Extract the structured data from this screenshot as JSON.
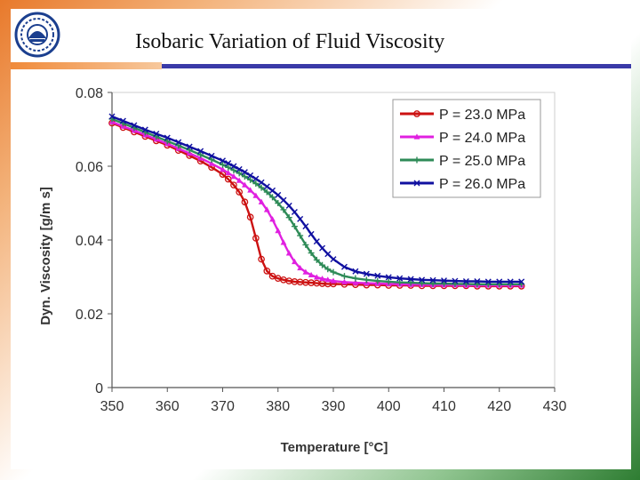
{
  "slide": {
    "title": "Isobaric Variation of Fluid Viscosity",
    "logo_icon": "institute-emblem-icon"
  },
  "colors": {
    "s1": "#cc1111",
    "s2": "#e020e0",
    "s3": "#2e8b57",
    "s4": "#1010a0"
  },
  "chart_data": {
    "type": "line",
    "title": "",
    "xlabel": "Temperature [°C]",
    "ylabel": "Dyn. Viscosity  [g/m s]",
    "xlim": [
      350,
      430
    ],
    "ylim": [
      0,
      0.08
    ],
    "xticks": [
      "350",
      "360",
      "370",
      "380",
      "390",
      "400",
      "410",
      "420",
      "430"
    ],
    "yticks": [
      "0",
      "0.02",
      "0.04",
      "0.06",
      "0.08"
    ],
    "x": [
      350,
      352,
      354,
      356,
      358,
      360,
      362,
      364,
      366,
      368,
      370,
      371,
      372,
      373,
      374,
      375,
      376,
      377,
      378,
      379,
      380,
      381,
      382,
      383,
      384,
      385,
      386,
      387,
      388,
      389,
      390,
      392,
      394,
      396,
      398,
      400,
      402,
      404,
      406,
      408,
      410,
      412,
      414,
      416,
      418,
      420,
      422,
      424
    ],
    "series": [
      {
        "name": "P = 23.0 MPa",
        "marker": "circle",
        "values": [
          0.0717,
          0.0705,
          0.0693,
          0.0681,
          0.0669,
          0.0657,
          0.0643,
          0.0629,
          0.0614,
          0.0597,
          0.0578,
          0.0565,
          0.0549,
          0.053,
          0.0503,
          0.0462,
          0.0405,
          0.0348,
          0.0316,
          0.0302,
          0.0296,
          0.0292,
          0.0289,
          0.0287,
          0.0286,
          0.0285,
          0.0284,
          0.0283,
          0.0282,
          0.0281,
          0.0281,
          0.028,
          0.0279,
          0.0278,
          0.0278,
          0.0277,
          0.0277,
          0.0277,
          0.0276,
          0.0276,
          0.0276,
          0.0276,
          0.0276,
          0.0275,
          0.0275,
          0.0275,
          0.0275,
          0.0275
        ]
      },
      {
        "name": "P = 24.0 MPa",
        "marker": "triangle",
        "values": [
          0.072,
          0.0708,
          0.0697,
          0.0685,
          0.0673,
          0.0661,
          0.0648,
          0.0635,
          0.0622,
          0.0607,
          0.0591,
          0.0582,
          0.0572,
          0.0561,
          0.0549,
          0.0535,
          0.052,
          0.0503,
          0.0482,
          0.0456,
          0.0425,
          0.0393,
          0.0364,
          0.0341,
          0.0324,
          0.0313,
          0.0305,
          0.0299,
          0.0295,
          0.0292,
          0.0289,
          0.0286,
          0.0284,
          0.0283,
          0.0282,
          0.0281,
          0.028,
          0.0279,
          0.0279,
          0.0278,
          0.0278,
          0.0278,
          0.0277,
          0.0277,
          0.0277,
          0.0277,
          0.0277,
          0.0277
        ]
      },
      {
        "name": "P = 25.0 MPa",
        "marker": "plus",
        "values": [
          0.0728,
          0.0716,
          0.0704,
          0.0692,
          0.068,
          0.0668,
          0.0656,
          0.0644,
          0.0631,
          0.0618,
          0.0604,
          0.0597,
          0.0589,
          0.0581,
          0.0572,
          0.0563,
          0.0553,
          0.0542,
          0.053,
          0.0516,
          0.05,
          0.0482,
          0.0461,
          0.0437,
          0.0412,
          0.0387,
          0.0365,
          0.0346,
          0.0332,
          0.0321,
          0.0313,
          0.0302,
          0.0296,
          0.0292,
          0.0289,
          0.0287,
          0.0285,
          0.0284,
          0.0283,
          0.0282,
          0.0282,
          0.0281,
          0.0281,
          0.028,
          0.028,
          0.028,
          0.028,
          0.028
        ]
      },
      {
        "name": "P = 26.0 MPa",
        "marker": "x",
        "values": [
          0.0735,
          0.0723,
          0.0711,
          0.0699,
          0.0688,
          0.0677,
          0.0665,
          0.0653,
          0.0641,
          0.0628,
          0.0615,
          0.0608,
          0.06,
          0.0592,
          0.0584,
          0.0575,
          0.0566,
          0.0556,
          0.0545,
          0.0534,
          0.0522,
          0.0508,
          0.0493,
          0.0476,
          0.0457,
          0.0437,
          0.0416,
          0.0396,
          0.0378,
          0.0362,
          0.0348,
          0.0327,
          0.0315,
          0.0308,
          0.0303,
          0.0299,
          0.0296,
          0.0294,
          0.0292,
          0.0291,
          0.029,
          0.0289,
          0.0288,
          0.0288,
          0.0287,
          0.0287,
          0.0287,
          0.0287
        ]
      }
    ]
  }
}
